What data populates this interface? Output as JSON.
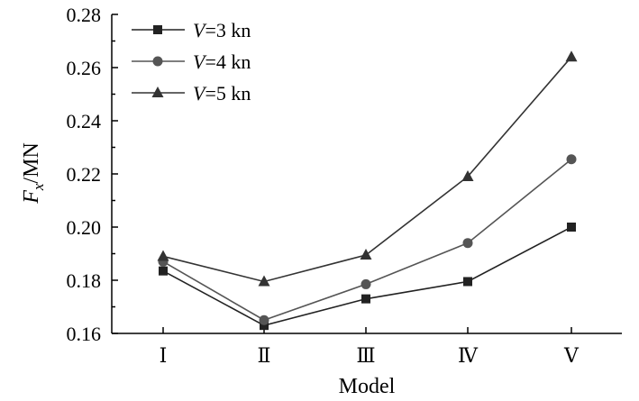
{
  "chart_data": {
    "type": "line",
    "title": "",
    "xlabel": "Model",
    "ylabel_main": "F",
    "ylabel_sub": "x",
    "ylabel_unit": "/MN",
    "categories": [
      "Ⅰ",
      "Ⅱ",
      "Ⅲ",
      "Ⅳ",
      "Ⅴ"
    ],
    "ylim": [
      0.16,
      0.28
    ],
    "yticks": [
      "0.16",
      "0.18",
      "0.20",
      "0.22",
      "0.24",
      "0.26",
      "0.28"
    ],
    "grid": false,
    "legend_position": "top-left",
    "series": [
      {
        "name_var": "V",
        "name_rest": "=3 kn",
        "marker": "square",
        "color": "#222222",
        "values": [
          0.1835,
          0.163,
          0.173,
          0.1795,
          0.2
        ]
      },
      {
        "name_var": "V",
        "name_rest": "=4 kn",
        "marker": "circle",
        "color": "#555555",
        "values": [
          0.187,
          0.165,
          0.1785,
          0.194,
          0.2255
        ]
      },
      {
        "name_var": "V",
        "name_rest": "=5 kn",
        "marker": "triangle",
        "color": "#333333",
        "values": [
          0.189,
          0.1795,
          0.1895,
          0.219,
          0.264
        ]
      }
    ]
  }
}
